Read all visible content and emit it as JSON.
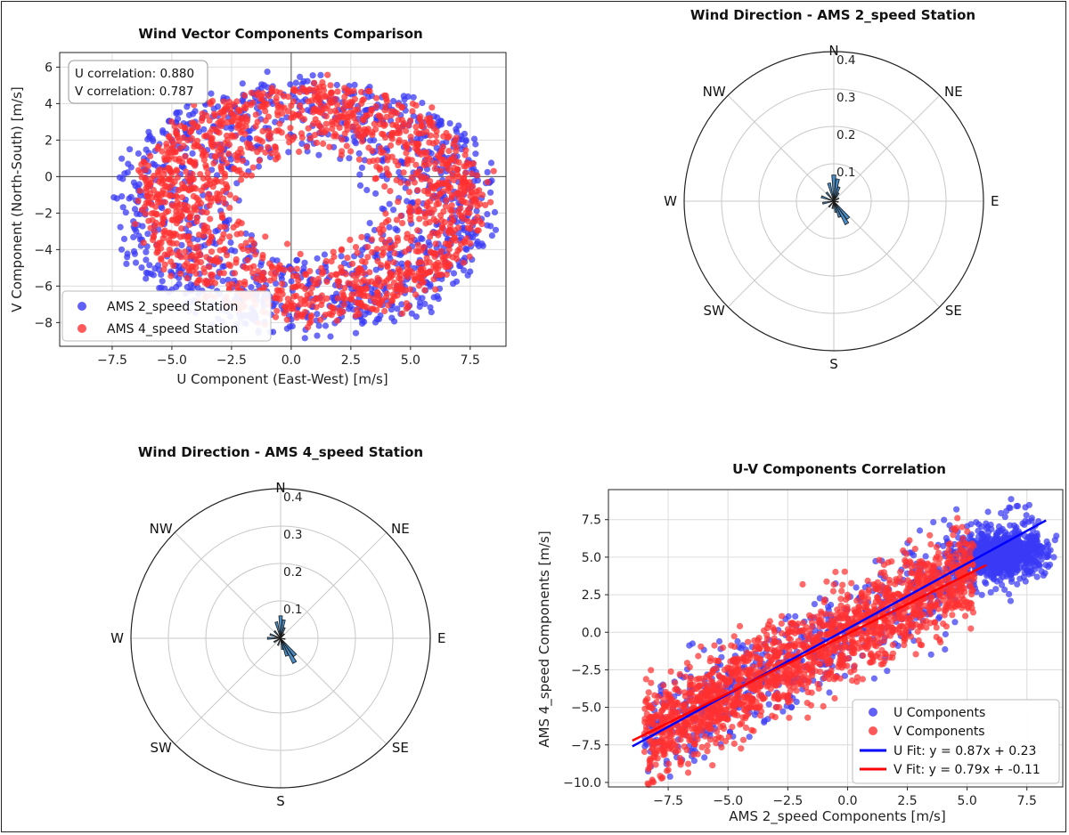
{
  "colors": {
    "u": "#1e1ee6",
    "v": "#f01818",
    "u_point": "#3a3af5",
    "v_point": "#ff3030",
    "rose_fill": "#4a8cc4",
    "rose_edge": "#1a1a1a",
    "fit_u": "#0000ff",
    "fit_v": "#ff0000"
  },
  "chart_data": [
    {
      "id": "scatter-uv",
      "type": "scatter",
      "title": "Wind Vector Components Comparison",
      "xlabel": "U Component (East-West) [m/s]",
      "ylabel": "V Component (North-South) [m/s]",
      "xlim": [
        -9.7,
        9.0
      ],
      "ylim": [
        -9.3,
        6.8
      ],
      "xticks": [
        -7.5,
        -5.0,
        -2.5,
        0.0,
        2.5,
        5.0,
        7.5
      ],
      "xtick_labels": [
        "−7.5",
        "−5.0",
        "−2.5",
        "0.0",
        "2.5",
        "5.0",
        "7.5"
      ],
      "yticks": [
        -8,
        -6,
        -4,
        -2,
        0,
        2,
        4,
        6
      ],
      "ytick_labels": [
        "−8",
        "−6",
        "−4",
        "−2",
        "0",
        "2",
        "4",
        "6"
      ],
      "grid": true,
      "reference_lines": {
        "x": 0,
        "y": 0
      },
      "annotation": [
        "U correlation: 0.880",
        "V correlation: 0.787"
      ],
      "legend_position": "lower-left",
      "series": [
        {
          "name": "AMS 2_speed Station",
          "color": "u",
          "shape": "ring",
          "center": [
            0.6,
            -1.7
          ],
          "inner_radius": [
            2.6,
            2.3
          ],
          "outer_radius": [
            8.0,
            7.0
          ]
        },
        {
          "name": "AMS 4_speed Station",
          "color": "v",
          "shape": "ring",
          "center": [
            0.8,
            -1.4
          ],
          "inner_radius": [
            2.9,
            2.5
          ],
          "outer_radius": [
            7.2,
            6.4
          ]
        }
      ]
    },
    {
      "id": "rose-2",
      "type": "polar-bar",
      "title": "Wind Direction - AMS 2_speed Station",
      "directions": [
        "N",
        "NE",
        "E",
        "SE",
        "S",
        "SW",
        "W",
        "NW"
      ],
      "radial_ticks": [
        "0.1",
        "0.2",
        "0.3",
        "0.4"
      ],
      "rmax": 0.4,
      "bars": [
        {
          "angle_deg": 0,
          "value": 0.07
        },
        {
          "angle_deg": 10,
          "value": 0.06
        },
        {
          "angle_deg": 20,
          "value": 0.04
        },
        {
          "angle_deg": 30,
          "value": 0.025
        },
        {
          "angle_deg": 60,
          "value": 0.015
        },
        {
          "angle_deg": 100,
          "value": 0.012
        },
        {
          "angle_deg": 140,
          "value": 0.06
        },
        {
          "angle_deg": 150,
          "value": 0.07
        },
        {
          "angle_deg": 160,
          "value": 0.045
        },
        {
          "angle_deg": 170,
          "value": 0.03
        },
        {
          "angle_deg": 190,
          "value": 0.02
        },
        {
          "angle_deg": 220,
          "value": 0.02
        },
        {
          "angle_deg": 260,
          "value": 0.03
        },
        {
          "angle_deg": 290,
          "value": 0.035
        },
        {
          "angle_deg": 320,
          "value": 0.03
        },
        {
          "angle_deg": 345,
          "value": 0.05
        }
      ]
    },
    {
      "id": "rose-4",
      "type": "polar-bar",
      "title": "Wind Direction - AMS 4_speed Station",
      "directions": [
        "N",
        "NE",
        "E",
        "SE",
        "S",
        "SW",
        "W",
        "NW"
      ],
      "radial_ticks": [
        "0.1",
        "0.2",
        "0.3",
        "0.4"
      ],
      "rmax": 0.4,
      "bars": [
        {
          "angle_deg": 0,
          "value": 0.06
        },
        {
          "angle_deg": 10,
          "value": 0.05
        },
        {
          "angle_deg": 20,
          "value": 0.03
        },
        {
          "angle_deg": 40,
          "value": 0.015
        },
        {
          "angle_deg": 100,
          "value": 0.012
        },
        {
          "angle_deg": 140,
          "value": 0.06
        },
        {
          "angle_deg": 150,
          "value": 0.075
        },
        {
          "angle_deg": 160,
          "value": 0.05
        },
        {
          "angle_deg": 170,
          "value": 0.03
        },
        {
          "angle_deg": 200,
          "value": 0.02
        },
        {
          "angle_deg": 240,
          "value": 0.02
        },
        {
          "angle_deg": 270,
          "value": 0.035
        },
        {
          "angle_deg": 290,
          "value": 0.03
        },
        {
          "angle_deg": 320,
          "value": 0.025
        },
        {
          "angle_deg": 345,
          "value": 0.045
        }
      ]
    },
    {
      "id": "scatter-corr",
      "type": "scatter",
      "title": "U-V Components Correlation",
      "xlabel": "AMS 2_speed Components [m/s]",
      "ylabel": "AMS 4_speed Components [m/s]",
      "xlim": [
        -10.0,
        9.0
      ],
      "ylim": [
        -10.3,
        9.5
      ],
      "xticks": [
        -7.5,
        -5.0,
        -2.5,
        0.0,
        2.5,
        5.0,
        7.5
      ],
      "xtick_labels": [
        "−7.5",
        "−5.0",
        "−2.5",
        "0.0",
        "2.5",
        "5.0",
        "7.5"
      ],
      "yticks": [
        -10.0,
        -7.5,
        -5.0,
        -2.5,
        0.0,
        2.5,
        5.0,
        7.5
      ],
      "ytick_labels": [
        "−10.0",
        "−7.5",
        "−5.0",
        "−2.5",
        "0.0",
        "2.5",
        "5.0",
        "7.5"
      ],
      "grid": true,
      "legend_position": "lower-right",
      "series": [
        {
          "name": "U Components",
          "color": "u",
          "cluster": [
            6.5,
            5.2
          ],
          "fit": {
            "slope": 0.87,
            "intercept": 0.23,
            "x_range": [
              -9.0,
              8.3
            ]
          }
        },
        {
          "name": "V Components",
          "color": "v",
          "fit": {
            "slope": 0.79,
            "intercept": -0.11,
            "x_range": [
              -9.0,
              5.8
            ]
          }
        }
      ],
      "fit_lines": [
        {
          "label": "U Fit: y = 0.87x + 0.23",
          "color": "fit_u",
          "slope": 0.87,
          "intercept": 0.23,
          "x_range": [
            -9.0,
            8.3
          ]
        },
        {
          "label": "V Fit: y = 0.79x + -0.11",
          "color": "fit_v",
          "slope": 0.79,
          "intercept": -0.11,
          "x_range": [
            -9.0,
            5.8
          ]
        }
      ]
    }
  ]
}
